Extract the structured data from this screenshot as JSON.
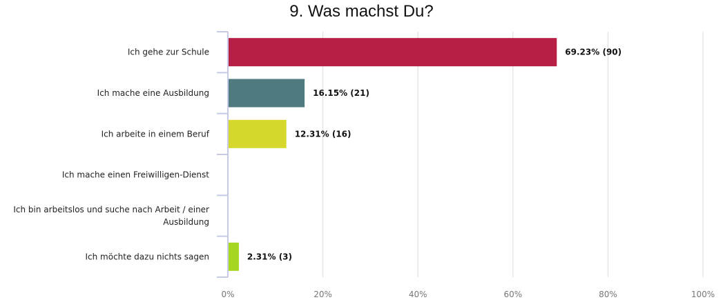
{
  "chart_data": {
    "type": "bar",
    "orientation": "horizontal",
    "title": "9. Was machst Du?",
    "categories": [
      "Ich gehe zur Schule",
      "Ich mache eine Ausbildung",
      "Ich arbeite in einem Beruf",
      "Ich mache einen Freiwilligen-Dienst",
      "Ich bin arbeitslos und suche nach Arbeit / einer Ausbildung",
      "Ich möchte dazu nichts sagen"
    ],
    "category_lines": [
      [
        "Ich gehe zur Schule"
      ],
      [
        "Ich mache eine Ausbildung"
      ],
      [
        "Ich arbeite in einem Beruf"
      ],
      [
        "Ich mache einen Freiwilligen-Dienst"
      ],
      [
        "Ich bin arbeitslos und suche nach Arbeit / einer",
        "Ausbildung"
      ],
      [
        "Ich möchte dazu nichts sagen"
      ]
    ],
    "values": [
      69.23,
      16.15,
      12.31,
      0,
      0,
      2.31
    ],
    "counts": [
      90,
      21,
      16,
      0,
      0,
      3
    ],
    "data_labels": [
      "69.23% (90)",
      "16.15% (21)",
      "12.31% (16)",
      "",
      "",
      "2.31% (3)"
    ],
    "colors": [
      "#b71f44",
      "#4f7a80",
      "#d6d92b",
      "#7a8c3a",
      "#8a6fb0",
      "#a6d61f"
    ],
    "xlim": [
      0,
      100
    ],
    "xticks": [
      0,
      20,
      40,
      60,
      80,
      100
    ],
    "xtick_labels": [
      "0%",
      "20%",
      "40%",
      "60%",
      "80%",
      "100%"
    ],
    "grid": true,
    "legend": "none"
  }
}
